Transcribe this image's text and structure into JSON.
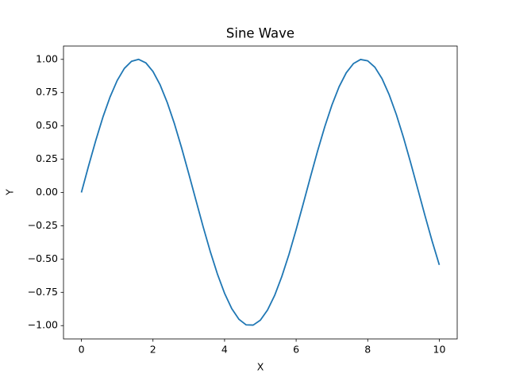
{
  "chart_data": {
    "type": "line",
    "title": "Sine Wave",
    "x_label": "X",
    "y_label": "Y",
    "color": "#1f77b4",
    "x": [
      0,
      0.2,
      0.4,
      0.6,
      0.8,
      1.0,
      1.2,
      1.4,
      1.6,
      1.8,
      2.0,
      2.2,
      2.4,
      2.6,
      2.8,
      3.0,
      3.2,
      3.4,
      3.6,
      3.8,
      4.0,
      4.2,
      4.4,
      4.6,
      4.8,
      5.0,
      5.2,
      5.4,
      5.6,
      5.8,
      6.0,
      6.2,
      6.4,
      6.6,
      6.8,
      7.0,
      7.2,
      7.4,
      7.6,
      7.8,
      8.0,
      8.2,
      8.4,
      8.6,
      8.8,
      9.0,
      9.2,
      9.4,
      9.6,
      9.8,
      10.0
    ],
    "values": [
      0,
      0.199,
      0.389,
      0.565,
      0.717,
      0.841,
      0.932,
      0.985,
      1.0,
      0.974,
      0.909,
      0.808,
      0.675,
      0.516,
      0.335,
      0.141,
      -0.058,
      -0.256,
      -0.443,
      -0.612,
      -0.757,
      -0.872,
      -0.952,
      -0.994,
      -0.996,
      -0.959,
      -0.883,
      -0.773,
      -0.631,
      -0.465,
      -0.279,
      -0.083,
      0.117,
      0.312,
      0.494,
      0.657,
      0.794,
      0.899,
      0.968,
      0.999,
      0.989,
      0.941,
      0.855,
      0.734,
      0.585,
      0.412,
      0.223,
      0.025,
      -0.174,
      -0.366,
      -0.544
    ],
    "xlim": [
      -0.5,
      10.5
    ],
    "xticks": [
      0,
      2,
      4,
      6,
      8,
      10
    ],
    "ylim": [
      -1.1,
      1.1
    ],
    "yticks": [
      {
        "value": -1,
        "label": "−1.00"
      },
      {
        "value": -0.75,
        "label": "−0.75"
      },
      {
        "value": -0.5,
        "label": "−0.50"
      },
      {
        "value": -0.25,
        "label": "−0.25"
      },
      {
        "value": 0,
        "label": "0.00"
      },
      {
        "value": 0.25,
        "label": "0.25"
      },
      {
        "value": 0.5,
        "label": "0.50"
      },
      {
        "value": 0.75,
        "label": "0.75"
      },
      {
        "value": 1,
        "label": "1.00"
      }
    ],
    "grid": false
  }
}
